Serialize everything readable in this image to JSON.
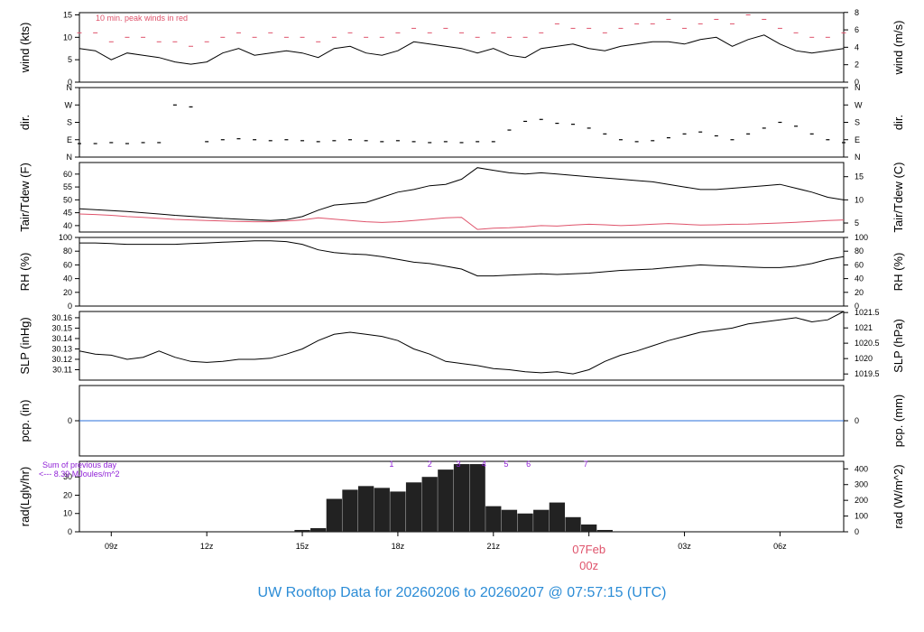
{
  "title": "UW Rooftop Data for 20260206  to  20260207 @ 07:57:15  (UTC)",
  "colors": {
    "title": "#2b8cd6",
    "peak": "#df536b",
    "dew": "#df536b",
    "pcp": "#2a6fdb",
    "rad_note": "#8f1fd6",
    "date": "#df536b",
    "line": "#000000"
  },
  "chart_data": [
    {
      "id": "wind",
      "type": "line",
      "left_label": "wind (kts)",
      "right_label": "wind (m/s)",
      "annotation": "10 min. peak winds in red",
      "ylim": [
        0,
        15.5
      ],
      "y_ticks": [
        0,
        5,
        10,
        15
      ],
      "right_ticks": [
        {
          "label": "0",
          "value": 0
        },
        {
          "label": "2",
          "value": 3.89
        },
        {
          "label": "4",
          "value": 7.78
        },
        {
          "label": "6",
          "value": 11.66
        },
        {
          "label": "8",
          "value": 15.55
        }
      ],
      "series": [
        {
          "role": "mean",
          "x": [
            0,
            0.5,
            1.0,
            1.5,
            2.0,
            2.5,
            3.0,
            3.5,
            4.0,
            4.5,
            5.0,
            5.5,
            6.0,
            6.5,
            7.0,
            7.5,
            8.0,
            8.5,
            9.0,
            9.5,
            10.0,
            10.5,
            11.0,
            11.5,
            12.0,
            12.5,
            13.0,
            13.5,
            14.0,
            14.5,
            15.0,
            15.5,
            16.0,
            16.5,
            17.0,
            17.5,
            18.0,
            18.5,
            19.0,
            19.5,
            20.0,
            20.5,
            21.0,
            21.5,
            22.0,
            22.5,
            23.0,
            23.5,
            24.0
          ],
          "values": [
            7.5,
            7.0,
            5.0,
            6.5,
            6.0,
            5.5,
            4.5,
            4.0,
            4.5,
            6.5,
            7.5,
            6.0,
            6.5,
            7.0,
            6.5,
            5.5,
            7.5,
            8.0,
            6.5,
            6.0,
            7.0,
            9.0,
            8.5,
            8.0,
            7.5,
            6.5,
            7.5,
            6.0,
            5.5,
            7.5,
            8.0,
            8.5,
            7.5,
            7.0,
            8.0,
            8.5,
            9.0,
            9.0,
            8.5,
            9.5,
            10.0,
            8.0,
            9.5,
            10.5,
            8.5,
            7.0,
            6.5,
            7.0,
            7.5
          ]
        },
        {
          "role": "peak",
          "x": [
            0,
            0.5,
            1.0,
            1.5,
            2.0,
            2.5,
            3.0,
            3.5,
            4.0,
            4.5,
            5.0,
            5.5,
            6.0,
            6.5,
            7.0,
            7.5,
            8.0,
            8.5,
            9.0,
            9.5,
            10.0,
            10.5,
            11.0,
            11.5,
            12.0,
            12.5,
            13.0,
            13.5,
            14.0,
            14.5,
            15.0,
            15.5,
            16.0,
            16.5,
            17.0,
            17.5,
            18.0,
            18.5,
            19.0,
            19.5,
            20.0,
            20.5,
            21.0,
            21.5,
            22.0,
            22.5,
            23.0,
            23.5,
            24.0
          ],
          "values": [
            11,
            11,
            9,
            10,
            10,
            9,
            9,
            8,
            9,
            10,
            11,
            10,
            11,
            10,
            10,
            9,
            10,
            11,
            10,
            10,
            11,
            12,
            11,
            12,
            11,
            10,
            11,
            10,
            10,
            11,
            13,
            12,
            12,
            11,
            12,
            13,
            13,
            14,
            12,
            13,
            14,
            13,
            15,
            14,
            12,
            11,
            10,
            10,
            11
          ]
        }
      ]
    },
    {
      "id": "dir",
      "type": "scatter",
      "left_label": "dir.",
      "right_label": "dir.",
      "ylim": [
        0,
        360
      ],
      "left_ticks": [
        {
          "label": "N",
          "value": 0
        },
        {
          "label": "E",
          "value": 90
        },
        {
          "label": "S",
          "value": 180
        },
        {
          "label": "W",
          "value": 270
        },
        {
          "label": "N",
          "value": 360
        }
      ],
      "right_ticks": [
        {
          "label": "N",
          "value": 0
        },
        {
          "label": "E",
          "value": 90
        },
        {
          "label": "S",
          "value": 180
        },
        {
          "label": "W",
          "value": 270
        },
        {
          "label": "N",
          "value": 360
        }
      ],
      "x": [
        0,
        0.5,
        1.0,
        1.5,
        2.0,
        2.5,
        3.0,
        3.5,
        4.0,
        4.5,
        5.0,
        5.5,
        6.0,
        6.5,
        7.0,
        7.5,
        8.0,
        8.5,
        9.0,
        9.5,
        10.0,
        10.5,
        11.0,
        11.5,
        12.0,
        12.5,
        13.0,
        13.5,
        14.0,
        14.5,
        15.0,
        15.5,
        16.0,
        16.5,
        17.0,
        17.5,
        18.0,
        18.5,
        19.0,
        19.5,
        20.0,
        20.5,
        21.0,
        21.5,
        22.0,
        22.5,
        23.0,
        23.5,
        24.0
      ],
      "values": [
        70,
        70,
        75,
        70,
        75,
        75,
        270,
        260,
        80,
        90,
        95,
        90,
        85,
        90,
        85,
        80,
        85,
        90,
        85,
        80,
        85,
        80,
        75,
        80,
        75,
        80,
        80,
        140,
        185,
        195,
        175,
        170,
        150,
        120,
        90,
        80,
        85,
        100,
        120,
        130,
        110,
        90,
        120,
        150,
        180,
        160,
        120,
        90,
        75
      ]
    },
    {
      "id": "temp",
      "type": "line",
      "left_label": "Tair/Tdew (F)",
      "right_label": "Tair/Tdew (C)",
      "ylim": [
        37.5,
        64.5
      ],
      "y_ticks": [
        40,
        45,
        50,
        55,
        60
      ],
      "right_ticks": [
        {
          "label": "5",
          "value": 41
        },
        {
          "label": "10",
          "value": 50
        },
        {
          "label": "15",
          "value": 59
        }
      ],
      "series": [
        {
          "role": "air",
          "x": [
            0,
            0.5,
            1.0,
            1.5,
            2.0,
            2.5,
            3.0,
            3.5,
            4.0,
            4.5,
            5.0,
            5.5,
            6.0,
            6.5,
            7.0,
            7.5,
            8.0,
            8.5,
            9.0,
            9.5,
            10.0,
            10.5,
            11.0,
            11.5,
            12.0,
            12.5,
            13.0,
            13.5,
            14.0,
            14.5,
            15.0,
            15.5,
            16.0,
            16.5,
            17.0,
            17.5,
            18.0,
            18.5,
            19.0,
            19.5,
            20.0,
            20.5,
            21.0,
            21.5,
            22.0,
            22.5,
            23.0,
            23.5,
            24.0
          ],
          "values": [
            46.5,
            46.2,
            45.8,
            45.5,
            45.0,
            44.5,
            44.0,
            43.6,
            43.2,
            42.8,
            42.5,
            42.2,
            42.0,
            42.3,
            43.5,
            46.0,
            48.0,
            48.5,
            49.0,
            51.0,
            53.0,
            54.0,
            55.5,
            56.0,
            58.0,
            62.5,
            61.5,
            60.5,
            60.0,
            60.5,
            60.0,
            59.5,
            59.0,
            58.5,
            58.0,
            57.5,
            57.0,
            56.0,
            55.0,
            54.0,
            54.0,
            54.5,
            55.0,
            55.5,
            56.0,
            54.5,
            53.0,
            51.0,
            50.0
          ]
        },
        {
          "role": "dew",
          "x": [
            0,
            0.5,
            1.0,
            1.5,
            2.0,
            2.5,
            3.0,
            3.5,
            4.0,
            4.5,
            5.0,
            5.5,
            6.0,
            6.5,
            7.0,
            7.5,
            8.0,
            8.5,
            9.0,
            9.5,
            10.0,
            10.5,
            11.0,
            11.5,
            12.0,
            12.5,
            13.0,
            13.5,
            14.0,
            14.5,
            15.0,
            15.5,
            16.0,
            16.5,
            17.0,
            17.5,
            18.0,
            18.5,
            19.0,
            19.5,
            20.0,
            20.5,
            21.0,
            21.5,
            22.0,
            22.5,
            23.0,
            23.5,
            24.0
          ],
          "values": [
            44.5,
            44.3,
            44.0,
            43.5,
            43.2,
            42.8,
            42.4,
            42.2,
            42.0,
            41.8,
            41.6,
            41.5,
            41.5,
            41.8,
            42.2,
            43.0,
            42.5,
            42.0,
            41.5,
            41.2,
            41.5,
            42.0,
            42.5,
            43.0,
            43.2,
            38.5,
            39.0,
            39.2,
            39.5,
            40.0,
            39.8,
            40.2,
            40.5,
            40.3,
            40.0,
            40.2,
            40.5,
            40.8,
            40.5,
            40.2,
            40.3,
            40.5,
            40.6,
            40.8,
            41.0,
            41.3,
            41.6,
            42.0,
            42.2
          ]
        }
      ]
    },
    {
      "id": "rh",
      "type": "line",
      "left_label": "RH (%)",
      "right_label": "RH (%)",
      "ylim": [
        0,
        100
      ],
      "y_ticks": [
        0,
        20,
        40,
        60,
        80,
        100
      ],
      "right_ticks": [
        {
          "label": "0",
          "value": 0
        },
        {
          "label": "20",
          "value": 20
        },
        {
          "label": "40",
          "value": 40
        },
        {
          "label": "60",
          "value": 60
        },
        {
          "label": "80",
          "value": 80
        },
        {
          "label": "100",
          "value": 100
        }
      ],
      "x": [
        0,
        0.5,
        1.0,
        1.5,
        2.0,
        2.5,
        3.0,
        3.5,
        4.0,
        4.5,
        5.0,
        5.5,
        6.0,
        6.5,
        7.0,
        7.5,
        8.0,
        8.5,
        9.0,
        9.5,
        10.0,
        10.5,
        11.0,
        11.5,
        12.0,
        12.5,
        13.0,
        13.5,
        14.0,
        14.5,
        15.0,
        15.5,
        16.0,
        16.5,
        17.0,
        17.5,
        18.0,
        18.5,
        19.0,
        19.5,
        20.0,
        20.5,
        21.0,
        21.5,
        22.0,
        22.5,
        23.0,
        23.5,
        24.0
      ],
      "values": [
        92,
        92,
        91,
        90,
        90,
        90,
        90,
        91,
        92,
        93,
        94,
        95,
        95,
        94,
        90,
        82,
        78,
        76,
        75,
        72,
        68,
        64,
        62,
        58,
        54,
        44,
        44,
        45,
        46,
        47,
        46,
        47,
        48,
        50,
        52,
        53,
        54,
        56,
        58,
        60,
        59,
        58,
        57,
        56,
        56,
        58,
        62,
        68,
        72
      ]
    },
    {
      "id": "slp",
      "type": "line",
      "left_label": "SLP (inHg)",
      "right_label": "SLP (hPa)",
      "ylim": [
        30.1,
        30.166
      ],
      "y_ticks": [
        30.11,
        30.12,
        30.13,
        30.14,
        30.15,
        30.16
      ],
      "right_ticks": [
        {
          "label": "1019.5",
          "value": 30.1059
        },
        {
          "label": "1020",
          "value": 30.1207
        },
        {
          "label": "1020.5",
          "value": 30.1355
        },
        {
          "label": "1021",
          "value": 30.1502
        },
        {
          "label": "1021.5",
          "value": 30.165
        }
      ],
      "x": [
        0,
        0.5,
        1.0,
        1.5,
        2.0,
        2.5,
        3.0,
        3.5,
        4.0,
        4.5,
        5.0,
        5.5,
        6.0,
        6.5,
        7.0,
        7.5,
        8.0,
        8.5,
        9.0,
        9.5,
        10.0,
        10.5,
        11.0,
        11.5,
        12.0,
        12.5,
        13.0,
        13.5,
        14.0,
        14.5,
        15.0,
        15.5,
        16.0,
        16.5,
        17.0,
        17.5,
        18.0,
        18.5,
        19.0,
        19.5,
        20.0,
        20.5,
        21.0,
        21.5,
        22.0,
        22.5,
        23.0,
        23.5,
        24.0
      ],
      "values": [
        30.128,
        30.125,
        30.124,
        30.12,
        30.122,
        30.128,
        30.122,
        30.118,
        30.117,
        30.118,
        30.12,
        30.12,
        30.121,
        30.125,
        30.13,
        30.138,
        30.144,
        30.146,
        30.144,
        30.142,
        30.138,
        30.13,
        30.125,
        30.118,
        30.116,
        30.114,
        30.111,
        30.11,
        30.108,
        30.107,
        30.108,
        30.106,
        30.11,
        30.118,
        30.124,
        30.128,
        30.133,
        30.138,
        30.142,
        30.146,
        30.148,
        30.15,
        30.154,
        30.156,
        30.158,
        30.16,
        30.156,
        30.158,
        30.166
      ]
    },
    {
      "id": "pcp",
      "type": "line",
      "left_label": "pcp. (in)",
      "right_label": "pcp. (mm)",
      "ylim": [
        -1,
        1
      ],
      "y_ticks": [
        0
      ],
      "right_ticks": [
        {
          "label": "0",
          "value": 0
        }
      ],
      "x": [
        0,
        24
      ],
      "values": [
        0,
        0
      ]
    },
    {
      "id": "rad",
      "type": "bar",
      "left_label": "rad(Lgly/hr)",
      "right_label": "rad (W/m^2)",
      "note_line1": "Sum of previous day",
      "note_line2": "<--- 8.39 MJoules/m^2",
      "ylim": [
        0,
        38.5
      ],
      "y_ticks": [
        0,
        10,
        20,
        30
      ],
      "right_ticks": [
        {
          "label": "0",
          "value": 0
        },
        {
          "label": "100",
          "value": 8.6
        },
        {
          "label": "200",
          "value": 17.2
        },
        {
          "label": "300",
          "value": 25.8
        },
        {
          "label": "400",
          "value": 34.4
        }
      ],
      "x": [
        7.0,
        7.5,
        8.0,
        8.5,
        9.0,
        9.5,
        10.0,
        10.5,
        11.0,
        11.5,
        12.0,
        12.5,
        13.0,
        13.5,
        14.0,
        14.5,
        15.0,
        15.5,
        16.0,
        16.5
      ],
      "values": [
        1,
        2,
        18,
        23,
        25,
        24,
        22,
        27,
        30,
        34,
        37,
        37,
        14,
        12,
        10,
        12,
        16,
        8,
        4,
        1
      ],
      "markers": [
        {
          "label": "1",
          "x": 9.8
        },
        {
          "label": "2",
          "x": 11.0
        },
        {
          "label": "3",
          "x": 11.9
        },
        {
          "label": "4",
          "x": 12.7
        },
        {
          "label": "5",
          "x": 13.4
        },
        {
          "label": "6",
          "x": 14.1
        },
        {
          "label": "7",
          "x": 15.9
        }
      ]
    }
  ],
  "x_axis": {
    "type": "time",
    "xlim": [
      0,
      24
    ],
    "tick_labels": [
      {
        "label": "09z",
        "value": 1
      },
      {
        "label": "12z",
        "value": 4
      },
      {
        "label": "15z",
        "value": 7
      },
      {
        "label": "18z",
        "value": 10
      },
      {
        "label": "21z",
        "value": 13
      },
      {
        "label": "03z",
        "value": 19
      },
      {
        "label": "06z",
        "value": 22
      }
    ],
    "date_marker": {
      "value": 16,
      "date": "07Feb",
      "time": "00z"
    }
  }
}
